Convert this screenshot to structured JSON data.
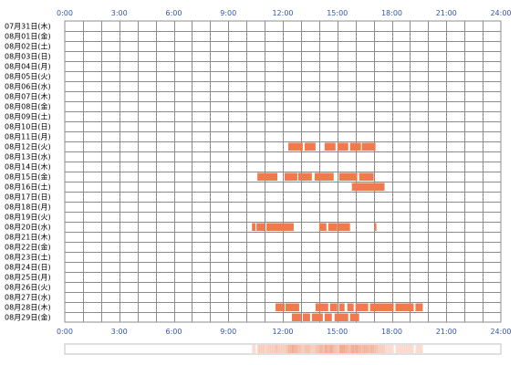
{
  "chart_data": {
    "type": "timeline",
    "x_ticks": [
      "0:00",
      "3:00",
      "6:00",
      "9:00",
      "12:00",
      "15:00",
      "18:00",
      "21:00",
      "24:00"
    ],
    "xlim": [
      0,
      24
    ],
    "grid": true,
    "rows": [
      {
        "label": "07月31日(木)",
        "segments": []
      },
      {
        "label": "08月01日(金)",
        "segments": []
      },
      {
        "label": "08月02日(土)",
        "segments": []
      },
      {
        "label": "08月03日(日)",
        "segments": []
      },
      {
        "label": "08月04日(月)",
        "segments": []
      },
      {
        "label": "08月05日(火)",
        "segments": []
      },
      {
        "label": "08月06日(水)",
        "segments": []
      },
      {
        "label": "08月07日(木)",
        "segments": []
      },
      {
        "label": "08月08日(金)",
        "segments": []
      },
      {
        "label": "08月09日(土)",
        "segments": []
      },
      {
        "label": "08月10日(日)",
        "segments": []
      },
      {
        "label": "08月11日(月)",
        "segments": []
      },
      {
        "label": "08月12日(火)",
        "segments": [
          [
            12.3,
            13.1
          ],
          [
            13.2,
            13.8
          ],
          [
            14.3,
            14.9
          ],
          [
            15.0,
            15.6
          ],
          [
            15.7,
            16.3
          ],
          [
            16.35,
            17.1
          ]
        ]
      },
      {
        "label": "08月13日(水)",
        "segments": []
      },
      {
        "label": "08月14日(木)",
        "segments": []
      },
      {
        "label": "08月15日(金)",
        "segments": [
          [
            10.6,
            11.7
          ],
          [
            12.1,
            12.8
          ],
          [
            12.85,
            13.6
          ],
          [
            13.75,
            14.8
          ],
          [
            15.1,
            16.1
          ],
          [
            16.2,
            17.0
          ]
        ]
      },
      {
        "label": "08月16日(土)",
        "segments": [
          [
            15.8,
            17.6
          ]
        ]
      },
      {
        "label": "08月17日(日)",
        "segments": []
      },
      {
        "label": "08月18日(月)",
        "segments": []
      },
      {
        "label": "08月19日(火)",
        "segments": []
      },
      {
        "label": "08月20日(水)",
        "segments": [
          [
            10.3,
            10.5
          ],
          [
            10.55,
            11.0
          ],
          [
            11.1,
            12.6
          ],
          [
            14.0,
            14.4
          ],
          [
            14.5,
            15.0
          ],
          [
            15.05,
            15.7
          ],
          [
            17.05,
            17.15
          ]
        ]
      },
      {
        "label": "08月21日(木)",
        "segments": []
      },
      {
        "label": "08月22日(金)",
        "segments": []
      },
      {
        "label": "08月23日(土)",
        "segments": []
      },
      {
        "label": "08月24日(日)",
        "segments": []
      },
      {
        "label": "08月25日(月)",
        "segments": []
      },
      {
        "label": "08月26日(火)",
        "segments": []
      },
      {
        "label": "08月27日(水)",
        "segments": []
      },
      {
        "label": "08月28日(木)",
        "segments": [
          [
            11.6,
            12.1
          ],
          [
            12.15,
            12.9
          ],
          [
            13.8,
            14.5
          ],
          [
            14.6,
            15.0
          ],
          [
            15.1,
            15.4
          ],
          [
            15.55,
            15.9
          ],
          [
            16.0,
            16.7
          ],
          [
            16.8,
            18.1
          ],
          [
            18.2,
            19.2
          ],
          [
            19.3,
            19.7
          ]
        ]
      },
      {
        "label": "08月29日(金)",
        "segments": [
          [
            12.5,
            13.0
          ],
          [
            13.1,
            13.5
          ],
          [
            13.6,
            14.2
          ],
          [
            14.3,
            14.7
          ],
          [
            14.85,
            15.6
          ],
          [
            15.7,
            16.2
          ]
        ]
      }
    ],
    "colors": {
      "bar": "#f07a50",
      "grid": "#8c8c8c",
      "tick": "#3355aa",
      "label": "#000000",
      "strip_border": "#c0c0c0"
    }
  }
}
